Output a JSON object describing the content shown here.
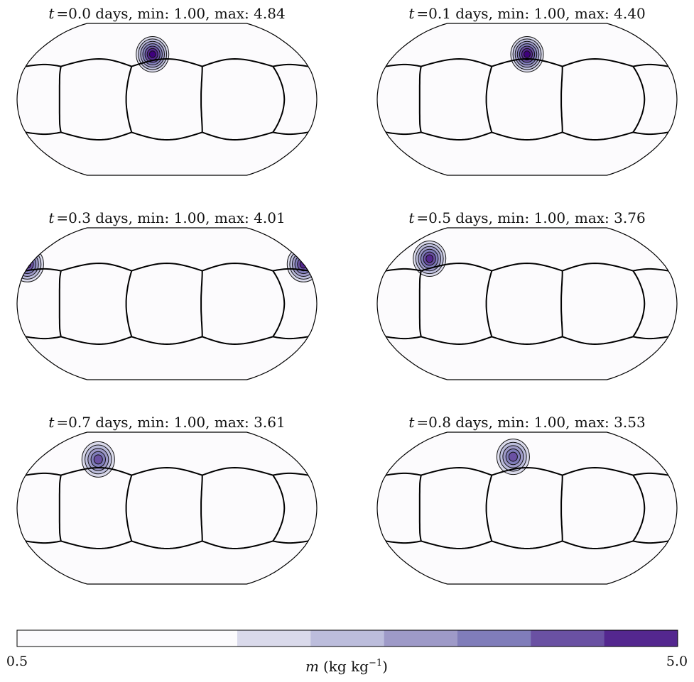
{
  "chart_data": {
    "type": "contour-map-grid",
    "panels": [
      {
        "t_label": "t",
        "t": 0.0,
        "title_rest": "=0.0 days, min: 1.00, max: 4.84",
        "min": 1.0,
        "max": 4.84,
        "blob": {
          "lon": -20,
          "lat": 48
        }
      },
      {
        "t_label": "t",
        "t": 0.1,
        "title_rest": "=0.1 days, min: 1.00, max: 4.40",
        "min": 1.0,
        "max": 4.4,
        "blob": {
          "lon": 0,
          "lat": 48
        }
      },
      {
        "t_label": "t",
        "t": 0.3,
        "title_rest": "=0.3 days, min: 1.00, max: 4.01",
        "min": 1.0,
        "max": 4.01,
        "blob": {
          "lon": 178,
          "lat": 42
        }
      },
      {
        "t_label": "t",
        "t": 0.5,
        "title_rest": "=0.5 days, min: 1.00, max: 3.76",
        "min": 1.0,
        "max": 3.76,
        "blob": {
          "lon": -135,
          "lat": 48
        }
      },
      {
        "t_label": "t",
        "t": 0.7,
        "title_rest": "=0.7 days, min: 1.00, max: 3.61",
        "min": 1.0,
        "max": 3.61,
        "blob": {
          "lon": -95,
          "lat": 52
        }
      },
      {
        "t_label": "t",
        "t": 0.8,
        "title_rest": "=0.8 days, min: 1.00, max: 3.53",
        "min": 1.0,
        "max": 3.53,
        "blob": {
          "lon": -20,
          "lat": 55
        }
      }
    ],
    "colorbar": {
      "min": 0.5,
      "max": 5.0,
      "min_label": "0.5",
      "max_label": "5.0",
      "label_var": "m",
      "label_units_pre": "(kg kg",
      "label_units_exp": "−1",
      "label_units_post": ")",
      "levels": [
        0.5,
        2.0,
        2.5,
        3.0,
        3.5,
        4.0,
        4.5,
        5.0
      ],
      "colors": [
        "#fcfbfd",
        "#dadaeb",
        "#bcbddc",
        "#9e9ac8",
        "#807dba",
        "#6a51a3",
        "#54278f",
        "#3f007d"
      ]
    },
    "contour_levels": [
      1.5,
      2.0,
      2.5,
      3.0,
      3.5,
      4.0,
      4.5
    ],
    "projection": "robinson"
  }
}
